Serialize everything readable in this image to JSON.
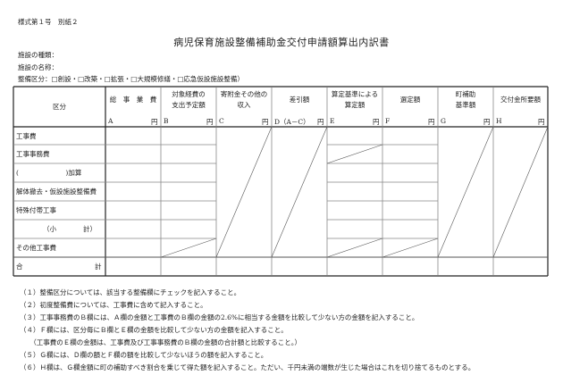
{
  "header": {
    "form_number": "様式第１号　別紙２",
    "title": "病児保育施設整備補助金交付申請額算出内訳書",
    "facility_type_label": "施設の種類：",
    "facility_name_label": "施設の名称：",
    "category_label": "整備区分：□創設・□改築・□拡張・□大規模修繕・□応急仮設施設整備）"
  },
  "table": {
    "columns": [
      {
        "label": "区分",
        "letter": "",
        "unit": ""
      },
      {
        "label": "総　事　業　費",
        "letter": "A",
        "unit": "円"
      },
      {
        "label": "対象経費の\n支出予定額",
        "letter": "B",
        "unit": "円"
      },
      {
        "label": "寄附金その他の\n収入",
        "letter": "C",
        "unit": "円"
      },
      {
        "label": "差引額",
        "letter": "D（A－C）",
        "unit": "円"
      },
      {
        "label": "算定基準による\n算定額",
        "letter": "E",
        "unit": "円"
      },
      {
        "label": "選定額",
        "letter": "F",
        "unit": "円"
      },
      {
        "label": "町補助\n基準額",
        "letter": "G",
        "unit": "円"
      },
      {
        "label": "交付金所要額",
        "letter": "H",
        "unit": "円"
      }
    ],
    "rows": [
      {
        "label": "工事費"
      },
      {
        "label": "工事事務費"
      },
      {
        "label": "(　　　　　　　)加算"
      },
      {
        "label": "解体撤去・仮設施設整備費"
      },
      {
        "label": "特殊付帯工事"
      },
      {
        "label": "（小　　　　計）"
      },
      {
        "label": "その他工事費"
      }
    ],
    "total_label_left": "合",
    "total_label_right": "計"
  },
  "notes": [
    "（１）整備区分については、該当する整備欄にチェックを記入すること。",
    "（２）初度整備費については、工事費に含めて記入すること。",
    "（３）工事事務費のＢ欄には、Ａ欄の金額と工事費のＢ欄の金額の2.6%に相当する金額を比較して少ない方の金額を記入すること。",
    "（４）Ｆ欄には、区分毎にＢ欄とＥ欄の金額を比較して少ない方の金額を記入すること。",
    "　　（工事費のＥ欄の金額は、工事費及び工事事務費のＢ欄の金額の合計額と比較すること。）",
    "（５）Ｇ欄には、Ｄ欄の額とＦ欄の額を比較して少ないほうの額を記入すること。",
    "（６）Ｈ欄は、Ｇ欄金額に町の補助すべき割合を乗じて得た額を記入すること。ただい、千円未満の端数が生じた場合はこれを切り捨てるものとする。"
  ]
}
